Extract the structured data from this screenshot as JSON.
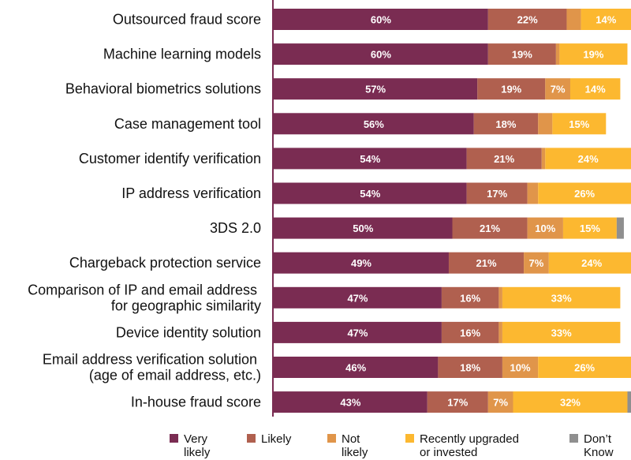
{
  "chart_data": {
    "type": "bar",
    "orientation": "horizontal",
    "stacked": true,
    "title": "",
    "xlabel": "",
    "ylabel": "",
    "xlim": [
      0,
      100
    ],
    "categories": [
      [
        "Outsourced fraud score"
      ],
      [
        "Machine learning models"
      ],
      [
        "Behavioral biometrics solutions"
      ],
      [
        "Case management tool"
      ],
      [
        "Customer identify verification"
      ],
      [
        "IP address verification"
      ],
      [
        "3DS 2.0"
      ],
      [
        "Chargeback protection service"
      ],
      [
        "Comparison of IP and email address ",
        "for geographic similarity"
      ],
      [
        "Device identity solution"
      ],
      [
        "Email address verification solution ",
        "(age of email address, etc.)"
      ],
      [
        "In-house fraud score"
      ]
    ],
    "series": [
      {
        "name": [
          "Very",
          "likely"
        ],
        "color": "#7a2c52",
        "values": [
          60,
          60,
          57,
          56,
          54,
          54,
          50,
          49,
          47,
          47,
          46,
          43
        ],
        "labels": [
          "60%",
          "60%",
          "57%",
          "56%",
          "54%",
          "54%",
          "50%",
          "49%",
          "47%",
          "47%",
          "46%",
          "43%"
        ]
      },
      {
        "name": [
          "Likely"
        ],
        "color": "#b0604f",
        "values": [
          22,
          19,
          19,
          18,
          21,
          17,
          21,
          21,
          16,
          16,
          18,
          17
        ],
        "labels": [
          "22%",
          "19%",
          "19%",
          "18%",
          "21%",
          "17%",
          "21%",
          "21%",
          "16%",
          "16%",
          "18%",
          "17%"
        ]
      },
      {
        "name": [
          "Not",
          "likely"
        ],
        "color": "#e0954a",
        "values": [
          4,
          1,
          7,
          4,
          1,
          3,
          10,
          7,
          1,
          1,
          10,
          7
        ],
        "labels": [
          "",
          "",
          "7%",
          "",
          "",
          "",
          "10%",
          "7%",
          "",
          "",
          "10%",
          "7%"
        ]
      },
      {
        "name": [
          "Recently upgraded",
          "or invested"
        ],
        "color": "#fcb830",
        "values": [
          14,
          19,
          14,
          15,
          24,
          26,
          15,
          24,
          33,
          33,
          26,
          32
        ],
        "labels": [
          "14%",
          "19%",
          "14%",
          "15%",
          "24%",
          "26%",
          "15%",
          "24%",
          "33%",
          "33%",
          "26%",
          "32%"
        ]
      },
      {
        "name": [
          "Don’t",
          "Know"
        ],
        "color": "#8f8f8f",
        "values": [
          2,
          0,
          0,
          0,
          0,
          0,
          2,
          0,
          0,
          0,
          0,
          1
        ],
        "labels": [
          "",
          "",
          "",
          "",
          "",
          "",
          "",
          "",
          "",
          "",
          "",
          ""
        ]
      }
    ],
    "axis_line_color": "#7a2c52",
    "legend_position": "bottom"
  }
}
